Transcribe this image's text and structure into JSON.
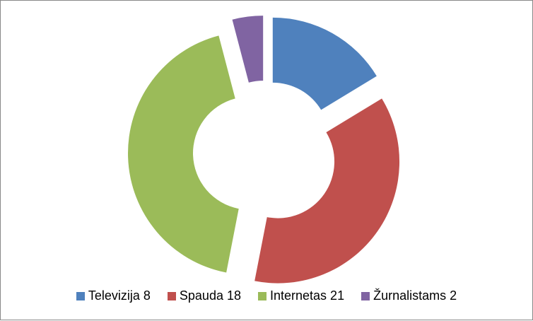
{
  "chart_data": {
    "type": "pie",
    "variant": "exploded-donut",
    "title": "",
    "series": [
      {
        "name": "Televizija",
        "value": 8,
        "color": "#4F81BD"
      },
      {
        "name": "Spauda",
        "value": 18,
        "color": "#C0504D"
      },
      {
        "name": "Internetas",
        "value": 21,
        "color": "#9BBB59"
      },
      {
        "name": "Žurnalistams",
        "value": 2,
        "color": "#8064A2"
      }
    ],
    "legend_position": "bottom"
  },
  "legend": {
    "items": [
      {
        "label": "Televizija 8",
        "color": "#4F81BD"
      },
      {
        "label": "Spauda 18",
        "color": "#C0504D"
      },
      {
        "label": "Internetas 21",
        "color": "#9BBB59"
      },
      {
        "label": "Žurnalistams 2",
        "color": "#8064A2"
      }
    ]
  }
}
